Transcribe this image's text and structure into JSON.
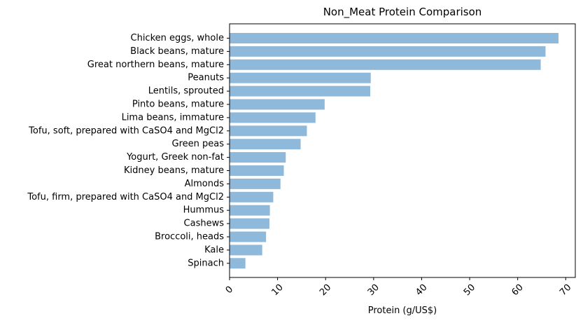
{
  "chart_data": {
    "type": "bar",
    "orientation": "horizontal",
    "title": "Non_Meat Protein Comparison",
    "xlabel": "Protein (g/US$)",
    "ylabel": "",
    "xlim": [
      0,
      72
    ],
    "xticks": [
      0,
      10,
      20,
      30,
      40,
      50,
      60,
      70
    ],
    "grid": false,
    "bar_color": "#8fb9da",
    "categories": [
      "Chicken eggs, whole",
      "Black beans, mature",
      "Great northern beans, mature",
      "Peanuts",
      "Lentils, sprouted",
      "Pinto beans, mature",
      "Lima beans, immature",
      "Tofu, soft, prepared with CaSO4 and MgCl2",
      "Green peas",
      "Yogurt, Greek non-fat",
      "Kidney beans, mature",
      "Almonds",
      "Tofu, firm, prepared with CaSO4 and MgCl2",
      "Hummus",
      "Cashews",
      "Broccoli, heads",
      "Kale",
      "Spinach"
    ],
    "values": [
      68.5,
      65.8,
      64.8,
      29.4,
      29.3,
      19.8,
      17.9,
      16.1,
      14.8,
      11.7,
      11.3,
      10.6,
      9.1,
      8.4,
      8.3,
      7.6,
      6.8,
      3.3
    ]
  }
}
